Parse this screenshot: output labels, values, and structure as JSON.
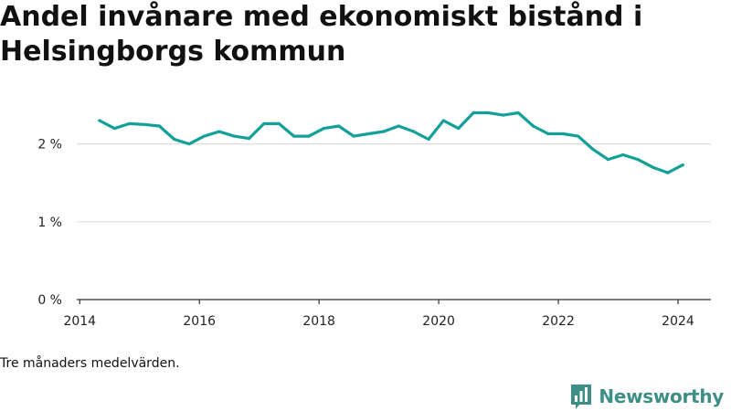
{
  "title": "Andel invånare med ekonomiskt bistånd i Helsingborgs kommun",
  "footnote": "Tre månaders medelvärden.",
  "brand": {
    "name": "Newsworthy",
    "logo_icon": "bar-chart-speech-bubble-icon",
    "color": "#3d8f86"
  },
  "colors": {
    "line": "#13a098",
    "grid": "#dddddd",
    "axis": "#333333"
  },
  "chart_data": {
    "type": "line",
    "title": "Andel invånare med ekonomiskt bistånd i Helsingborgs kommun",
    "xlabel": "",
    "ylabel": "",
    "xlim": [
      2013.95,
      2024.55
    ],
    "ylim": [
      0,
      2.5
    ],
    "x_ticks": [
      {
        "value": 2014,
        "label": "2014"
      },
      {
        "value": 2016,
        "label": "2016"
      },
      {
        "value": 2018,
        "label": "2018"
      },
      {
        "value": 2020,
        "label": "2020"
      },
      {
        "value": 2022,
        "label": "2022"
      },
      {
        "value": 2024,
        "label": "2024"
      }
    ],
    "y_ticks": [
      {
        "value": 0,
        "label": "0 %"
      },
      {
        "value": 1,
        "label": "1 %"
      },
      {
        "value": 2,
        "label": "2 %"
      }
    ],
    "grid": "horizontal",
    "legend": "none",
    "series": [
      {
        "x": [
          2014.33,
          2014.58,
          2014.83,
          2015.08,
          2015.33,
          2015.58,
          2015.83,
          2016.08,
          2016.33,
          2016.58,
          2016.83,
          2017.08,
          2017.33,
          2017.58,
          2017.83,
          2018.08,
          2018.33,
          2018.58,
          2018.83,
          2019.08,
          2019.33,
          2019.58,
          2019.83,
          2020.08,
          2020.33,
          2020.58,
          2020.83,
          2021.08,
          2021.33,
          2021.58,
          2021.83,
          2022.08,
          2022.33,
          2022.58,
          2022.83,
          2023.08,
          2023.33,
          2023.58,
          2023.83,
          2024.08
        ],
        "values": [
          2.3,
          2.2,
          2.26,
          2.25,
          2.23,
          2.06,
          2.0,
          2.1,
          2.16,
          2.1,
          2.07,
          2.26,
          2.26,
          2.1,
          2.1,
          2.2,
          2.23,
          2.1,
          2.13,
          2.16,
          2.23,
          2.16,
          2.06,
          2.3,
          2.2,
          2.4,
          2.4,
          2.37,
          2.4,
          2.23,
          2.13,
          2.13,
          2.1,
          1.93,
          1.8,
          1.86,
          1.8,
          1.7,
          1.63,
          1.73
        ]
      }
    ]
  }
}
